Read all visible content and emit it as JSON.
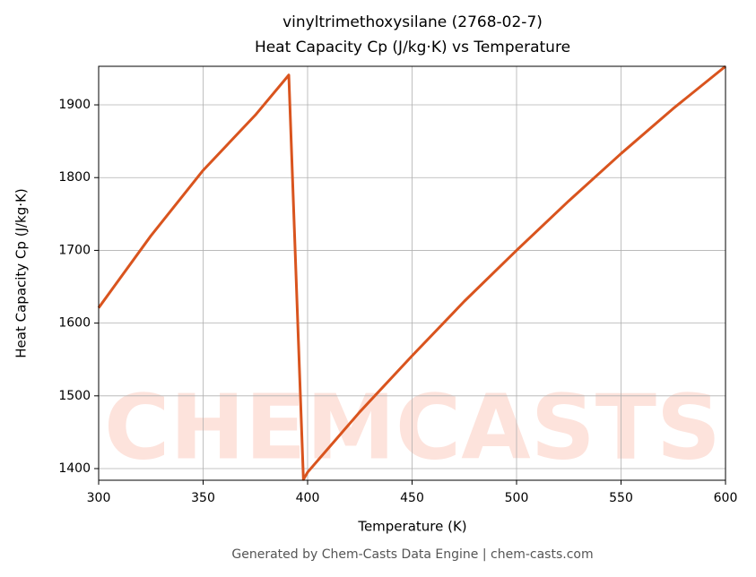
{
  "chart_data": {
    "type": "line",
    "title": "vinyltrimethoxysilane (2768-02-7)",
    "subtitle": "Heat Capacity Cp (J/kg·K) vs Temperature",
    "x_label": "Temperature (K)",
    "y_label": "Heat Capacity Cp (J/kg·K)",
    "watermark": "CHEMCASTS",
    "footer": "Generated by Chem-Casts Data Engine | chem-casts.com",
    "x": [
      300,
      325,
      350,
      375,
      391,
      398,
      400,
      425,
      450,
      475,
      500,
      525,
      550,
      575,
      600
    ],
    "series": [
      {
        "name": "Cp",
        "color": "#d9541e",
        "values": [
          1621,
          1720,
          1810,
          1886,
          1941,
          1385,
          1395,
          1478,
          1555,
          1630,
          1700,
          1768,
          1833,
          1895,
          1953
        ]
      }
    ],
    "xlim": [
      300,
      600
    ],
    "xticks": [
      300,
      350,
      400,
      450,
      500,
      550,
      600
    ],
    "ylim": [
      1384,
      1953
    ],
    "yticks": [
      1400,
      1500,
      1600,
      1700,
      1800,
      1900
    ],
    "grid": true
  }
}
